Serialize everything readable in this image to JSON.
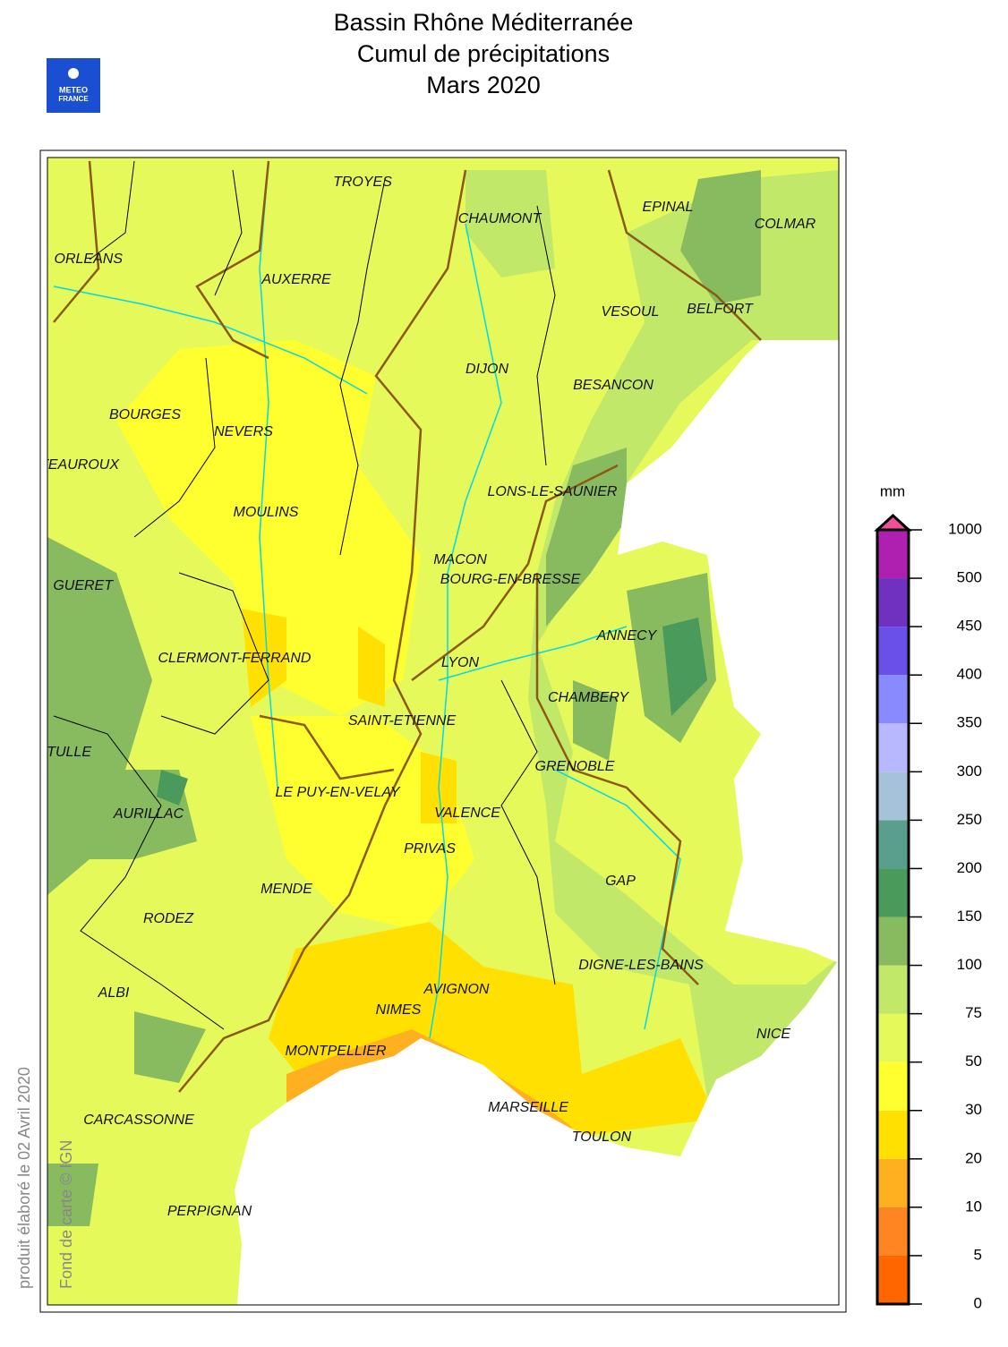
{
  "header": {
    "title_lines": [
      "Bassin Rhône Méditerranée",
      "Cumul de précipitations",
      "Mars 2020"
    ],
    "logo": [
      "METEO",
      "FRANCE"
    ]
  },
  "side_texts": {
    "produced": "produit élaboré le 02 Avril 2020",
    "credit": "Fond de carte © IGN"
  },
  "cities": [
    "TROYES",
    "CHAUMONT",
    "EPINAL",
    "COLMAR",
    "ORLEANS",
    "AUXERRE",
    "VESOUL",
    "BELFORT",
    "DIJON",
    "BESANCON",
    "BOURGES",
    "NEVERS",
    "CHATEAUROUX",
    "LONS-LE-SAUNIER",
    "MOULINS",
    "MACON",
    "BOURG-EN-BRESSE",
    "GUERET",
    "ANNECY",
    "CLERMONT-FERRAND",
    "LYON",
    "CHAMBERY",
    "SAINT-ETIENNE",
    "TULLE",
    "GRENOBLE",
    "LE PUY-EN-VELAY",
    "AURILLAC",
    "VALENCE",
    "PRIVAS",
    "GAP",
    "MENDE",
    "RODEZ",
    "DIGNE-LES-BAINS",
    "AVIGNON",
    "ALBI",
    "NIMES",
    "NICE",
    "MONTPELLIER",
    "CARCASSONNE",
    "MARSEILLE",
    "TOULON",
    "PERPIGNAN"
  ],
  "legend": {
    "unit": "mm",
    "ticks": [
      0,
      5,
      10,
      20,
      30,
      50,
      75,
      100,
      150,
      200,
      250,
      300,
      350,
      400,
      450,
      500,
      1000
    ],
    "colors": [
      "#ff6600",
      "#ff8422",
      "#ffb020",
      "#ffe000",
      "#ffff30",
      "#e6f95a",
      "#c2e86a",
      "#88bb60",
      "#4a9a5c",
      "#5a9e8e",
      "#a6c2d8",
      "#b8b8ff",
      "#8a8aff",
      "#6a50e8",
      "#7030c0",
      "#b020b0"
    ],
    "overflow_color": "#f0509a"
  }
}
